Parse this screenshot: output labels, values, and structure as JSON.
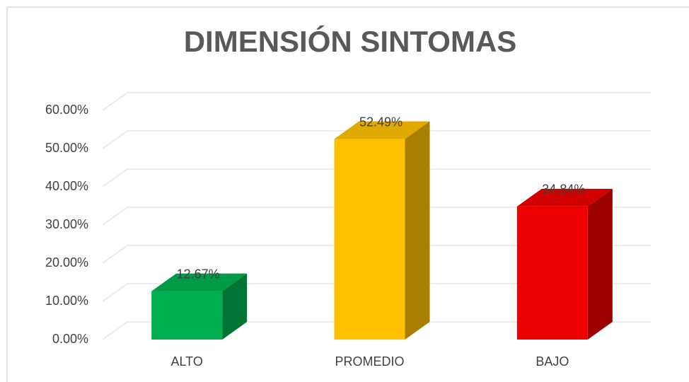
{
  "chart_data": {
    "type": "bar3d",
    "title": "DIMENSIÓN SINTOMAS",
    "categories": [
      "ALTO",
      "PROMEDIO",
      "BAJO"
    ],
    "values": [
      12.67,
      52.49,
      34.84
    ],
    "value_labels": [
      "12.67%",
      "52.49%",
      "34.84%"
    ],
    "colors": [
      "#00b050",
      "#ffc000",
      "#ee0000"
    ],
    "ylim": [
      0,
      60
    ],
    "yticks": [
      {
        "value": 0,
        "label": "0.00%"
      },
      {
        "value": 10,
        "label": "10.00%"
      },
      {
        "value": 20,
        "label": "20.00%"
      },
      {
        "value": 30,
        "label": "30.00%"
      },
      {
        "value": 40,
        "label": "40.00%"
      },
      {
        "value": 50,
        "label": "50.00%"
      },
      {
        "value": 60,
        "label": "60.00%"
      }
    ],
    "grid": true
  }
}
